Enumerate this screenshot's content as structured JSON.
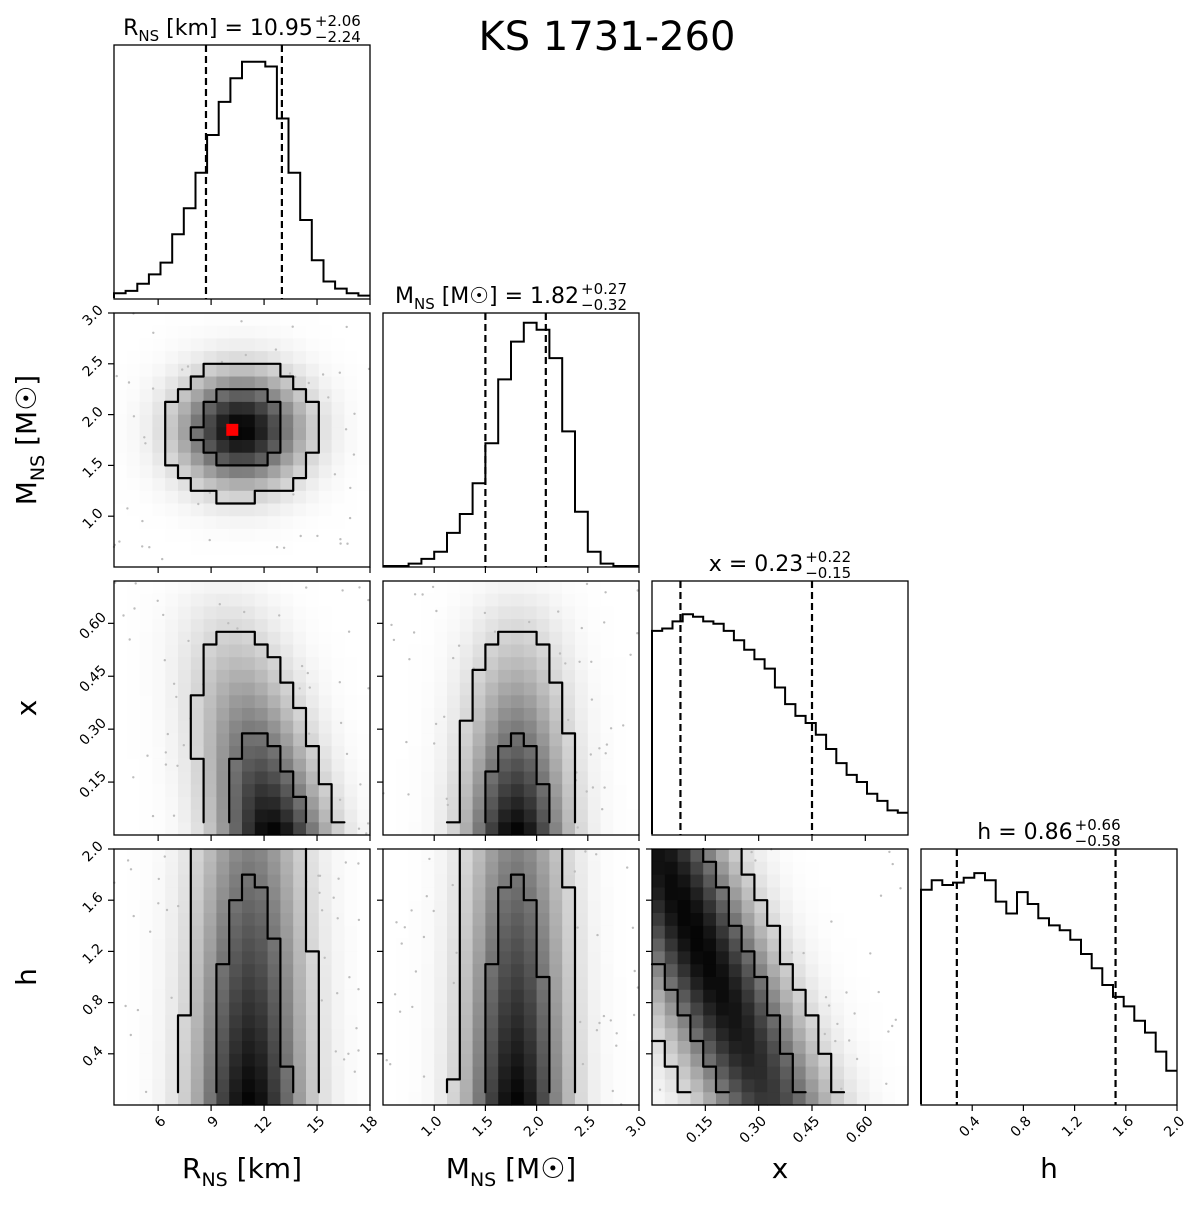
{
  "chart_data": {
    "type": "corner",
    "title": "KS 1731-260",
    "params": [
      {
        "key": "R",
        "label_main": "R",
        "label_sub": "NS",
        "label_unit": " [km]",
        "title_prefix": " [km] = ",
        "median": "10.95",
        "plus": "+2.06",
        "minus": "−2.24",
        "range": [
          3.5,
          18
        ],
        "ticks": [
          6,
          9,
          12,
          15,
          18
        ],
        "tick_labels": [
          "6",
          "9",
          "12",
          "15",
          "18"
        ],
        "y_ticks": [],
        "y_tick_labels": [],
        "vlines": [
          8.71,
          13.01
        ],
        "hist": [
          0.02,
          0.03,
          0.06,
          0.1,
          0.15,
          0.27,
          0.38,
          0.53,
          0.69,
          0.83,
          0.93,
          1.0,
          1.0,
          0.98,
          0.76,
          0.53,
          0.33,
          0.16,
          0.07,
          0.04,
          0.02,
          0.01
        ]
      },
      {
        "key": "M",
        "label_main": "M",
        "label_sub": "NS",
        "label_unit": " [M☉]",
        "title_prefix": " [M☉] = ",
        "median": "1.82",
        "plus": "+0.27",
        "minus": "−0.32",
        "range": [
          0.5,
          3.0
        ],
        "ticks": [
          1.0,
          1.5,
          2.0,
          2.5,
          3.0
        ],
        "tick_labels": [
          "1.0",
          "1.5",
          "2.0",
          "2.5",
          "3.0"
        ],
        "y_ticks": [
          1.0,
          1.5,
          2.0,
          2.5,
          3.0
        ],
        "y_tick_labels": [
          "1.0",
          "1.5",
          "2.0",
          "2.5",
          "3.0"
        ],
        "vlines": [
          1.5,
          2.09
        ],
        "hist": [
          0.0,
          0.0,
          0.01,
          0.03,
          0.06,
          0.14,
          0.22,
          0.35,
          0.52,
          0.79,
          0.95,
          1.03,
          1.0,
          0.88,
          0.57,
          0.23,
          0.06,
          0.01,
          0.0,
          0.0
        ]
      },
      {
        "key": "x",
        "label_main": "x",
        "label_sub": "",
        "label_unit": "",
        "title_prefix": " = ",
        "median": "0.23",
        "plus": "+0.22",
        "minus": "−0.15",
        "range": [
          0.0,
          0.72
        ],
        "ticks": [
          0.15,
          0.3,
          0.45,
          0.6
        ],
        "tick_labels": [
          "0.15",
          "0.30",
          "0.45",
          "0.60"
        ],
        "y_ticks": [
          0.15,
          0.3,
          0.45,
          0.6
        ],
        "y_tick_labels": [
          "0.15",
          "0.30",
          "0.45",
          "0.60"
        ],
        "vlines": [
          0.08,
          0.45
        ],
        "hist": [
          0.86,
          0.87,
          0.9,
          0.93,
          0.92,
          0.9,
          0.89,
          0.86,
          0.82,
          0.78,
          0.74,
          0.7,
          0.62,
          0.55,
          0.5,
          0.47,
          0.42,
          0.36,
          0.3,
          0.25,
          0.22,
          0.17,
          0.14,
          0.1,
          0.09
        ]
      },
      {
        "key": "h",
        "label_main": "h",
        "label_sub": "",
        "label_unit": "",
        "title_prefix": " = ",
        "median": "0.86",
        "plus": "+0.66",
        "minus": "−0.58",
        "range": [
          0.0,
          2.0
        ],
        "ticks": [
          0.4,
          0.8,
          1.2,
          1.6,
          2.0
        ],
        "tick_labels": [
          "0.4",
          "0.8",
          "1.2",
          "1.6",
          "2.0"
        ],
        "y_ticks": [
          0.4,
          0.8,
          1.2,
          1.6,
          2.0
        ],
        "y_tick_labels": [
          "0.4",
          "0.8",
          "1.2",
          "1.6",
          "2.0"
        ],
        "vlines": [
          0.28,
          1.52
        ],
        "hist": [
          0.9,
          0.94,
          0.92,
          0.93,
          0.95,
          0.97,
          0.94,
          0.85,
          0.8,
          0.89,
          0.84,
          0.78,
          0.75,
          0.73,
          0.69,
          0.63,
          0.57,
          0.5,
          0.45,
          0.41,
          0.35,
          0.3,
          0.22,
          0.14
        ]
      }
    ],
    "best_fit_marker": {
      "R": 10.2,
      "M": 1.85,
      "color": "#ff0000"
    },
    "contour_color": "#000000",
    "vline_style": "dashed"
  }
}
